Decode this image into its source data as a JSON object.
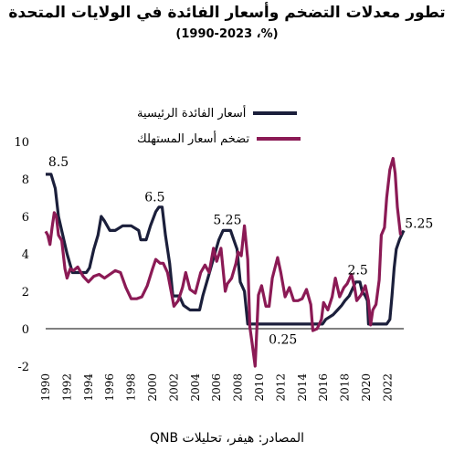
{
  "chart_data": {
    "type": "line",
    "title": "تطور معدلات التضخم وأسعار الفائدة في الولايات المتحدة",
    "subtitle": "(%، 1990-2023)",
    "source": "المصادر: هيفر، تحليلات QNB",
    "ylim": [
      -2,
      10
    ],
    "y_ticks": [
      "10",
      "8",
      "6",
      "4",
      "2",
      "0",
      "-2"
    ],
    "xlim": [
      1990,
      2023.5
    ],
    "x_ticks": [
      "1990",
      "1992",
      "1994",
      "1996",
      "1998",
      "2000",
      "2002",
      "2004",
      "2006",
      "2008",
      "2010",
      "2012",
      "2014",
      "2016",
      "2018",
      "2020",
      "2022"
    ],
    "legend_position": "top",
    "grid": false,
    "series": [
      {
        "name": "أسعار الفائدة الرئيسية",
        "color": "#1b1f3b",
        "points": [
          [
            1990.0,
            8.25
          ],
          [
            1990.5,
            8.25
          ],
          [
            1990.9,
            7.5
          ],
          [
            1991.2,
            6.0
          ],
          [
            1991.6,
            5.0
          ],
          [
            1992.0,
            4.0
          ],
          [
            1992.5,
            3.0
          ],
          [
            1993.0,
            3.0
          ],
          [
            1993.8,
            3.0
          ],
          [
            1994.1,
            3.25
          ],
          [
            1994.5,
            4.25
          ],
          [
            1994.9,
            5.0
          ],
          [
            1995.2,
            6.0
          ],
          [
            1995.5,
            5.75
          ],
          [
            1996.0,
            5.25
          ],
          [
            1996.5,
            5.25
          ],
          [
            1997.2,
            5.5
          ],
          [
            1998.0,
            5.5
          ],
          [
            1998.7,
            5.25
          ],
          [
            1998.9,
            4.75
          ],
          [
            1999.4,
            4.75
          ],
          [
            1999.8,
            5.5
          ],
          [
            2000.3,
            6.25
          ],
          [
            2000.6,
            6.5
          ],
          [
            2000.9,
            6.5
          ],
          [
            2001.2,
            5.0
          ],
          [
            2001.6,
            3.5
          ],
          [
            2001.9,
            1.75
          ],
          [
            2002.5,
            1.75
          ],
          [
            2002.9,
            1.25
          ],
          [
            2003.5,
            1.0
          ],
          [
            2004.4,
            1.0
          ],
          [
            2004.7,
            1.75
          ],
          [
            2005.2,
            2.75
          ],
          [
            2005.7,
            3.75
          ],
          [
            2006.2,
            4.75
          ],
          [
            2006.6,
            5.25
          ],
          [
            2007.3,
            5.25
          ],
          [
            2007.6,
            4.75
          ],
          [
            2007.9,
            4.25
          ],
          [
            2008.2,
            2.5
          ],
          [
            2008.6,
            2.0
          ],
          [
            2008.9,
            0.25
          ],
          [
            2010.0,
            0.25
          ],
          [
            2012.0,
            0.25
          ],
          [
            2014.0,
            0.25
          ],
          [
            2015.9,
            0.25
          ],
          [
            2016.2,
            0.5
          ],
          [
            2016.9,
            0.75
          ],
          [
            2017.3,
            1.0
          ],
          [
            2017.7,
            1.25
          ],
          [
            2018.0,
            1.5
          ],
          [
            2018.4,
            1.75
          ],
          [
            2018.8,
            2.25
          ],
          [
            2019.0,
            2.5
          ],
          [
            2019.4,
            2.5
          ],
          [
            2019.6,
            2.0
          ],
          [
            2019.9,
            1.75
          ],
          [
            2020.1,
            1.5
          ],
          [
            2020.2,
            0.25
          ],
          [
            2021.9,
            0.25
          ],
          [
            2022.2,
            0.5
          ],
          [
            2022.4,
            1.75
          ],
          [
            2022.6,
            3.25
          ],
          [
            2022.8,
            4.25
          ],
          [
            2023.1,
            4.75
          ],
          [
            2023.5,
            5.25
          ]
        ]
      },
      {
        "name": "تضخم أسعار المستهلك",
        "color": "#8b1a55",
        "points": [
          [
            1990.0,
            5.2
          ],
          [
            1990.2,
            5.0
          ],
          [
            1990.4,
            4.5
          ],
          [
            1990.6,
            5.4
          ],
          [
            1990.8,
            6.2
          ],
          [
            1991.0,
            6.0
          ],
          [
            1991.2,
            5.0
          ],
          [
            1991.5,
            4.7
          ],
          [
            1991.8,
            3.2
          ],
          [
            1992.0,
            2.7
          ],
          [
            1992.3,
            3.2
          ],
          [
            1992.6,
            3.1
          ],
          [
            1993.0,
            3.3
          ],
          [
            1993.5,
            2.8
          ],
          [
            1994.0,
            2.5
          ],
          [
            1994.5,
            2.8
          ],
          [
            1995.0,
            2.9
          ],
          [
            1995.5,
            2.7
          ],
          [
            1996.0,
            2.9
          ],
          [
            1996.5,
            3.1
          ],
          [
            1997.0,
            3.0
          ],
          [
            1997.5,
            2.2
          ],
          [
            1998.0,
            1.6
          ],
          [
            1998.5,
            1.6
          ],
          [
            1999.0,
            1.7
          ],
          [
            1999.5,
            2.3
          ],
          [
            2000.0,
            3.2
          ],
          [
            2000.3,
            3.7
          ],
          [
            2000.7,
            3.5
          ],
          [
            2001.0,
            3.5
          ],
          [
            2001.4,
            3.0
          ],
          [
            2001.8,
            1.8
          ],
          [
            2002.0,
            1.2
          ],
          [
            2002.4,
            1.5
          ],
          [
            2002.8,
            2.2
          ],
          [
            2003.1,
            3.0
          ],
          [
            2003.5,
            2.1
          ],
          [
            2004.0,
            1.9
          ],
          [
            2004.5,
            3.0
          ],
          [
            2004.9,
            3.4
          ],
          [
            2005.3,
            3.0
          ],
          [
            2005.7,
            4.3
          ],
          [
            2006.0,
            3.6
          ],
          [
            2006.4,
            4.3
          ],
          [
            2006.8,
            2.0
          ],
          [
            2007.0,
            2.4
          ],
          [
            2007.4,
            2.7
          ],
          [
            2007.8,
            3.5
          ],
          [
            2008.0,
            4.1
          ],
          [
            2008.3,
            3.9
          ],
          [
            2008.6,
            5.5
          ],
          [
            2008.9,
            3.7
          ],
          [
            2009.1,
            0.1
          ],
          [
            2009.3,
            -0.7
          ],
          [
            2009.6,
            -2.0
          ],
          [
            2009.9,
            1.8
          ],
          [
            2010.2,
            2.3
          ],
          [
            2010.6,
            1.2
          ],
          [
            2010.9,
            1.2
          ],
          [
            2011.2,
            2.7
          ],
          [
            2011.7,
            3.8
          ],
          [
            2012.0,
            3.0
          ],
          [
            2012.4,
            1.7
          ],
          [
            2012.8,
            2.2
          ],
          [
            2013.2,
            1.5
          ],
          [
            2013.6,
            1.5
          ],
          [
            2014.0,
            1.6
          ],
          [
            2014.4,
            2.1
          ],
          [
            2014.8,
            1.3
          ],
          [
            2015.0,
            -0.1
          ],
          [
            2015.4,
            0.0
          ],
          [
            2015.8,
            0.5
          ],
          [
            2016.0,
            1.4
          ],
          [
            2016.4,
            1.0
          ],
          [
            2016.8,
            1.7
          ],
          [
            2017.1,
            2.7
          ],
          [
            2017.5,
            1.7
          ],
          [
            2017.9,
            2.2
          ],
          [
            2018.2,
            2.4
          ],
          [
            2018.6,
            2.9
          ],
          [
            2018.9,
            2.2
          ],
          [
            2019.1,
            1.5
          ],
          [
            2019.5,
            1.8
          ],
          [
            2019.9,
            2.3
          ],
          [
            2020.2,
            1.5
          ],
          [
            2020.4,
            0.2
          ],
          [
            2020.6,
            1.0
          ],
          [
            2020.9,
            1.3
          ],
          [
            2021.2,
            2.6
          ],
          [
            2021.4,
            5.0
          ],
          [
            2021.7,
            5.4
          ],
          [
            2021.9,
            7.0
          ],
          [
            2022.2,
            8.5
          ],
          [
            2022.5,
            9.1
          ],
          [
            2022.7,
            8.3
          ],
          [
            2022.9,
            6.5
          ],
          [
            2023.2,
            5.0
          ]
        ]
      }
    ],
    "annotations": [
      "8.5",
      "6.5",
      "5.25",
      "0.25",
      "2.5",
      "5.25"
    ]
  }
}
